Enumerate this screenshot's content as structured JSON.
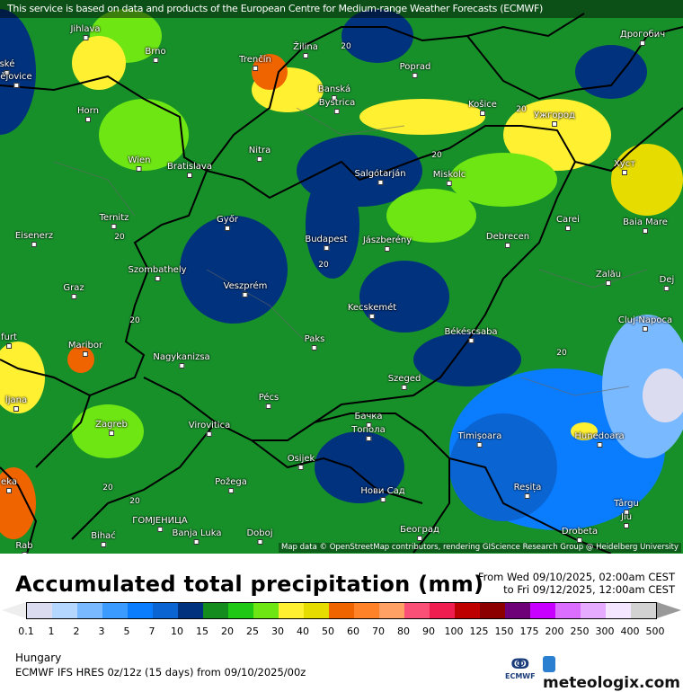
{
  "banner": "This service is based on data and products of the European Centre for Medium-range Weather Forecasts (ECMWF)",
  "map": {
    "cities": [
      "Jihlava",
      "Brno",
      "ské",
      "ějovice",
      "Žilina",
      "Poprad",
      "Дрогобич",
      "Trenčín",
      "Banská",
      "Bystrica",
      "Košice",
      "Ужгород",
      "Horn",
      "Nitra",
      "Wien",
      "Bratislava",
      "Salgótarján",
      "Miskolc",
      "Хуст",
      "Ternitz",
      "Győr",
      "Budapest",
      "Jászberény",
      "Debrecen",
      "Carei",
      "Baia Mare",
      "Eisenerz",
      "Szombathely",
      "Veszprém",
      "Zalău",
      "Graz",
      "Kecskemét",
      "Dej",
      "Cluj-Napoca",
      "Békéscsaba",
      "Maribor",
      "Paks",
      "Nagykanizsa",
      "Szeged",
      "Pécs",
      "ljana",
      "Zagreb",
      "Virovitica",
      "Бачка",
      "Топола",
      "Timișoara",
      "Hunedoara",
      "Osijek",
      "Požega",
      "Нови Сад",
      "Reșița",
      "Târgu",
      "Jiu",
      "Bihać",
      "ГОМЈЕНИЦА",
      "Banja Luka",
      "Doboj",
      "Београд",
      "Drobeta",
      "Rab",
      "eka",
      "furt"
    ],
    "contour_label": "20",
    "credit": "Map data © OpenStreetMap contributors, rendering GIScience Research Group @ Heidelberg University"
  },
  "legend": {
    "title": "Accumulated total precipitation (mm)",
    "period_from": "From Wed 09/10/2025, 02:00am CEST",
    "period_to": "to Fri 09/12/2025, 12:00am CEST",
    "ticks": [
      "0.1",
      "1",
      "2",
      "3",
      "5",
      "7",
      "10",
      "15",
      "20",
      "25",
      "30",
      "40",
      "50",
      "60",
      "70",
      "80",
      "90",
      "100",
      "125",
      "150",
      "175",
      "200",
      "250",
      "300",
      "400",
      "500"
    ],
    "colors": [
      "#dcdcf0",
      "#b4d7ff",
      "#78b9ff",
      "#3c9bff",
      "#0a7dff",
      "#0a64d2",
      "#00327d",
      "#148c1e",
      "#1ec814",
      "#6ee614",
      "#fff032",
      "#e6dc00",
      "#f06400",
      "#ff8228",
      "#ffa064",
      "#fa5078",
      "#f01e50",
      "#be0000",
      "#8c0000",
      "#6e0078",
      "#c800ff",
      "#dc6eff",
      "#e6aaff",
      "#f5e6ff",
      "#d2d2d2"
    ]
  },
  "footer": {
    "region": "Hungary",
    "model": "ECMWF IFS HRES 0z/12z (15 days) from  09/10/2025/00z",
    "ecmwf_label": "ECMWF",
    "brand": "meteologix.com"
  }
}
